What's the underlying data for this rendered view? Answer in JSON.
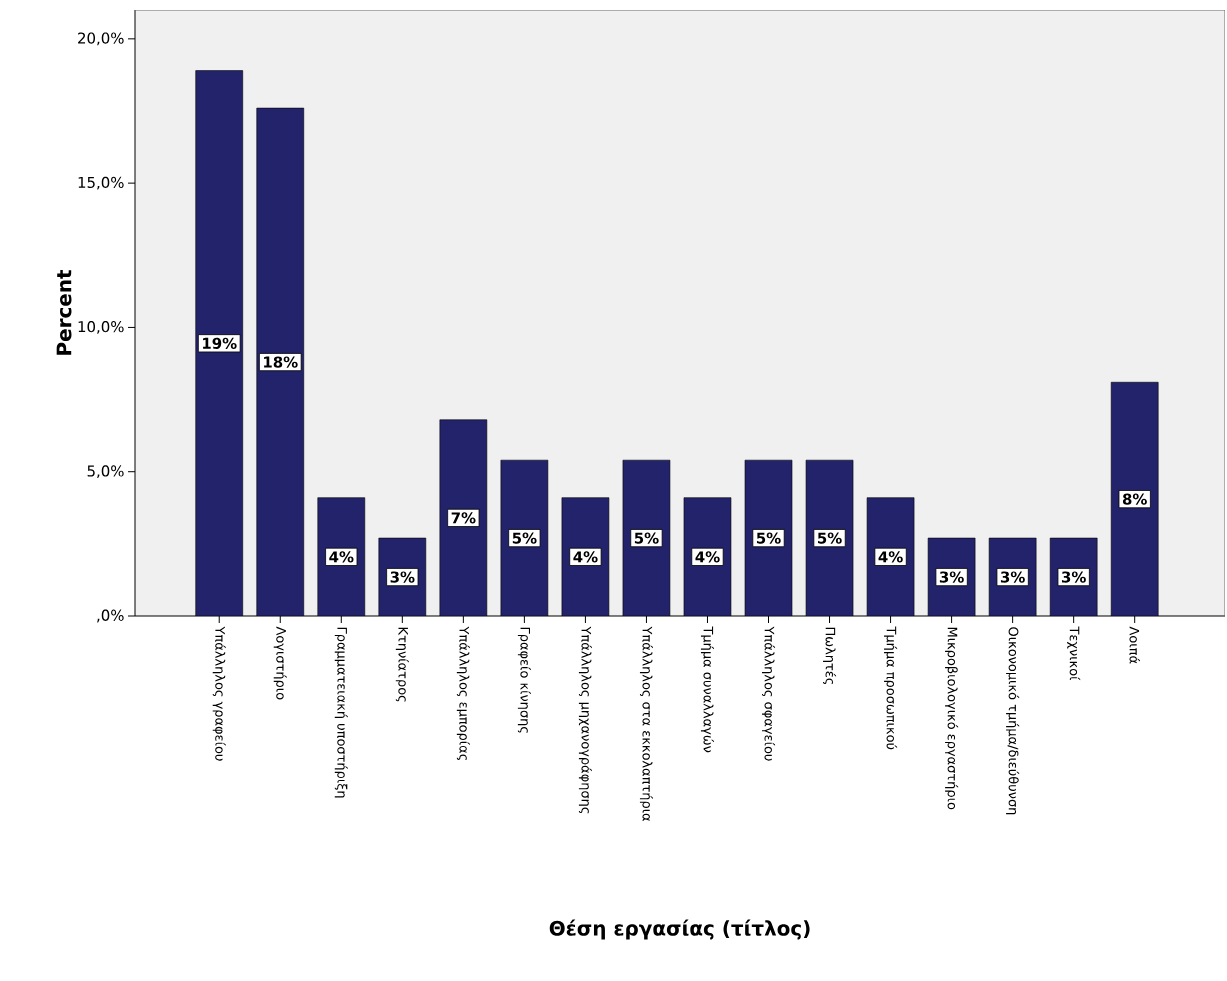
{
  "chart_data": {
    "type": "bar",
    "xlabel": "Θέση εργασίας (τίτλος)",
    "ylabel": "Percent",
    "categories": [
      "Υπάλληλος γραφείου",
      "Λογιστήριο",
      "Γραμματειακή υποστήριξη",
      "Κτηνίατρος",
      "Υπάλληλος εμπορίας",
      "Γραφείο κίνησης",
      "Υπάλληλος μηχανογράφησης",
      "Υπάλληλος στα εκκολαπτήρια",
      "Τμήμα συναλλαγών",
      "Υπάλληλος σφαγείου",
      "Πωλητές",
      "Τμήμα προσωπικού",
      "Μικροβιολογικό εργαστήριο",
      "Οικονομικό τμήμα/διεύθυνση",
      "Τεχνικοί",
      "Λοιπά"
    ],
    "values": [
      18.9,
      17.6,
      4.1,
      2.7,
      6.8,
      5.4,
      4.1,
      5.4,
      4.1,
      5.4,
      5.4,
      4.1,
      2.7,
      2.7,
      2.7,
      8.1
    ],
    "value_labels": [
      "19%",
      "18%",
      "4%",
      "3%",
      "7%",
      "5%",
      "4%",
      "5%",
      "4%",
      "5%",
      "5%",
      "4%",
      "3%",
      "3%",
      "3%",
      "8%"
    ],
    "color": "#23236b",
    "ylim": [
      0,
      21
    ],
    "yticks": [
      {
        "value": 0,
        "label": ",0%"
      },
      {
        "value": 5,
        "label": "5,0%"
      },
      {
        "value": 10,
        "label": "10,0%"
      },
      {
        "value": 15,
        "label": "15,0%"
      },
      {
        "value": 20,
        "label": "20,0%"
      }
    ],
    "grid": false
  }
}
